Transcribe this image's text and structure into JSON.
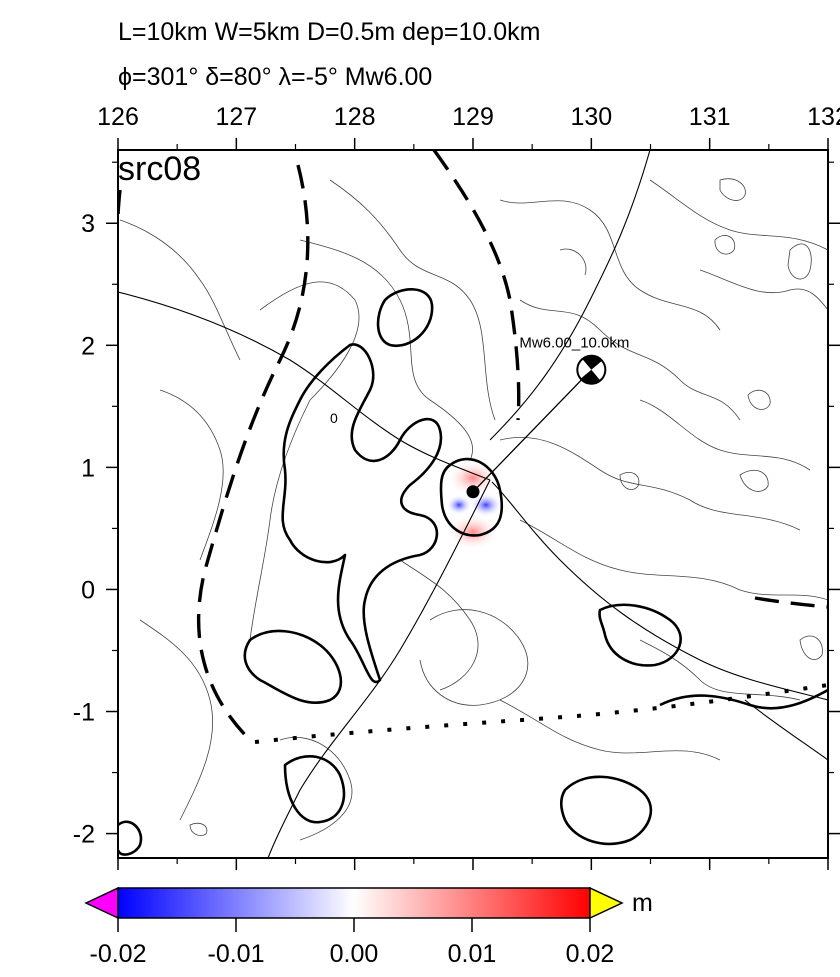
{
  "header": {
    "line1": "L=10km W=5km D=0.5m dep=10.0km",
    "line2": "ϕ=301° δ=80° λ=-5° Mw6.00"
  },
  "map": {
    "panel_label": "src08",
    "x_ticks": [
      "126",
      "127",
      "128",
      "129",
      "130",
      "131",
      "132"
    ],
    "y_ticks": [
      "3",
      "2",
      "1",
      "0",
      "-1",
      "-2"
    ],
    "lon_range": [
      126,
      132
    ],
    "lat_range": [
      -2.2,
      3.6
    ],
    "contour_label": "0",
    "source": {
      "lon": 129.0,
      "lat": 0.8
    },
    "mechanism": {
      "lon": 130.0,
      "lat": 1.8,
      "label": "Mw6.00_10.0km"
    }
  },
  "colorbar": {
    "unit": "m",
    "tick_labels": [
      "-0.02",
      "-0.01",
      "0.00",
      "0.01",
      "0.02"
    ],
    "range": [
      -0.02,
      0.02
    ],
    "colors": {
      "low": "#0000ff",
      "mid": "#ffffff",
      "high": "#ff0000",
      "under": "#ff00ff",
      "over": "#ffff00"
    }
  }
}
